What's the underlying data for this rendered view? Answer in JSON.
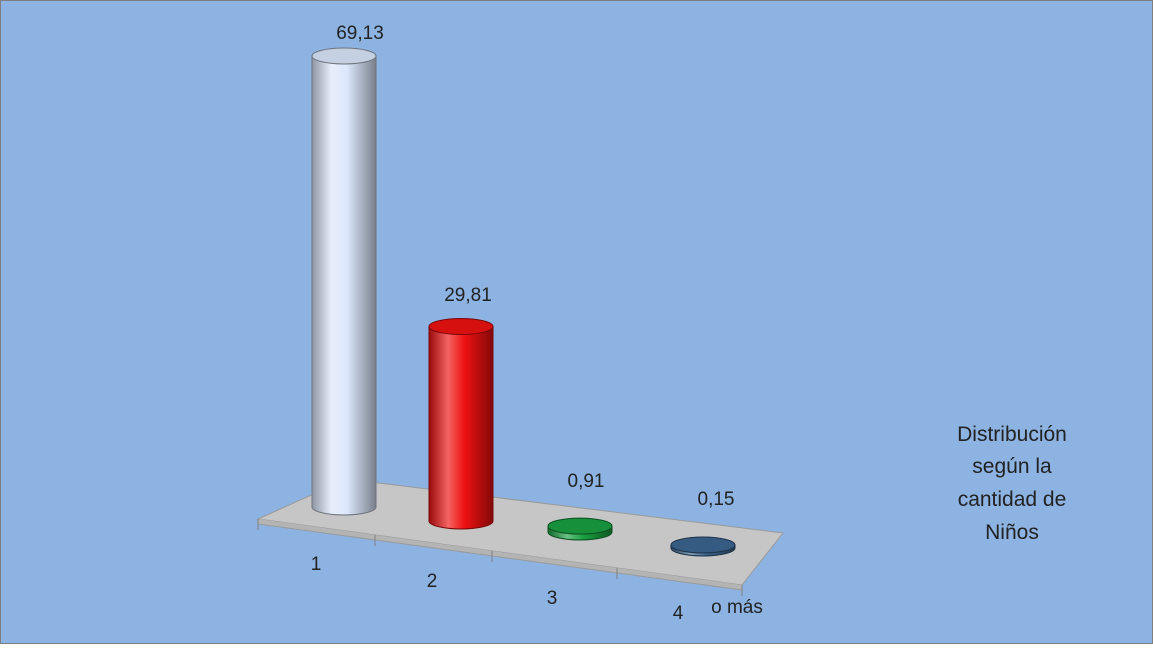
{
  "chart_data": {
    "type": "bar",
    "style": "3d-cylinder",
    "categories": [
      "1",
      "2",
      "3",
      "4"
    ],
    "values": [
      69.13,
      29.81,
      0.91,
      0.15
    ],
    "value_labels": [
      "69,13",
      "29,81",
      "0,91",
      "0,15"
    ],
    "series_colors": [
      "#dbe7fb",
      "#ee1111",
      "#18a040",
      "#3c6590"
    ],
    "axis_suffix_label": "o más",
    "legend_text_lines": [
      "Distribución",
      "según la",
      "cantidad de",
      "Niños"
    ],
    "legend_placement": "right",
    "background_color": "#8db3e2",
    "floor_color": "#c6c6c6",
    "grid": false
  }
}
